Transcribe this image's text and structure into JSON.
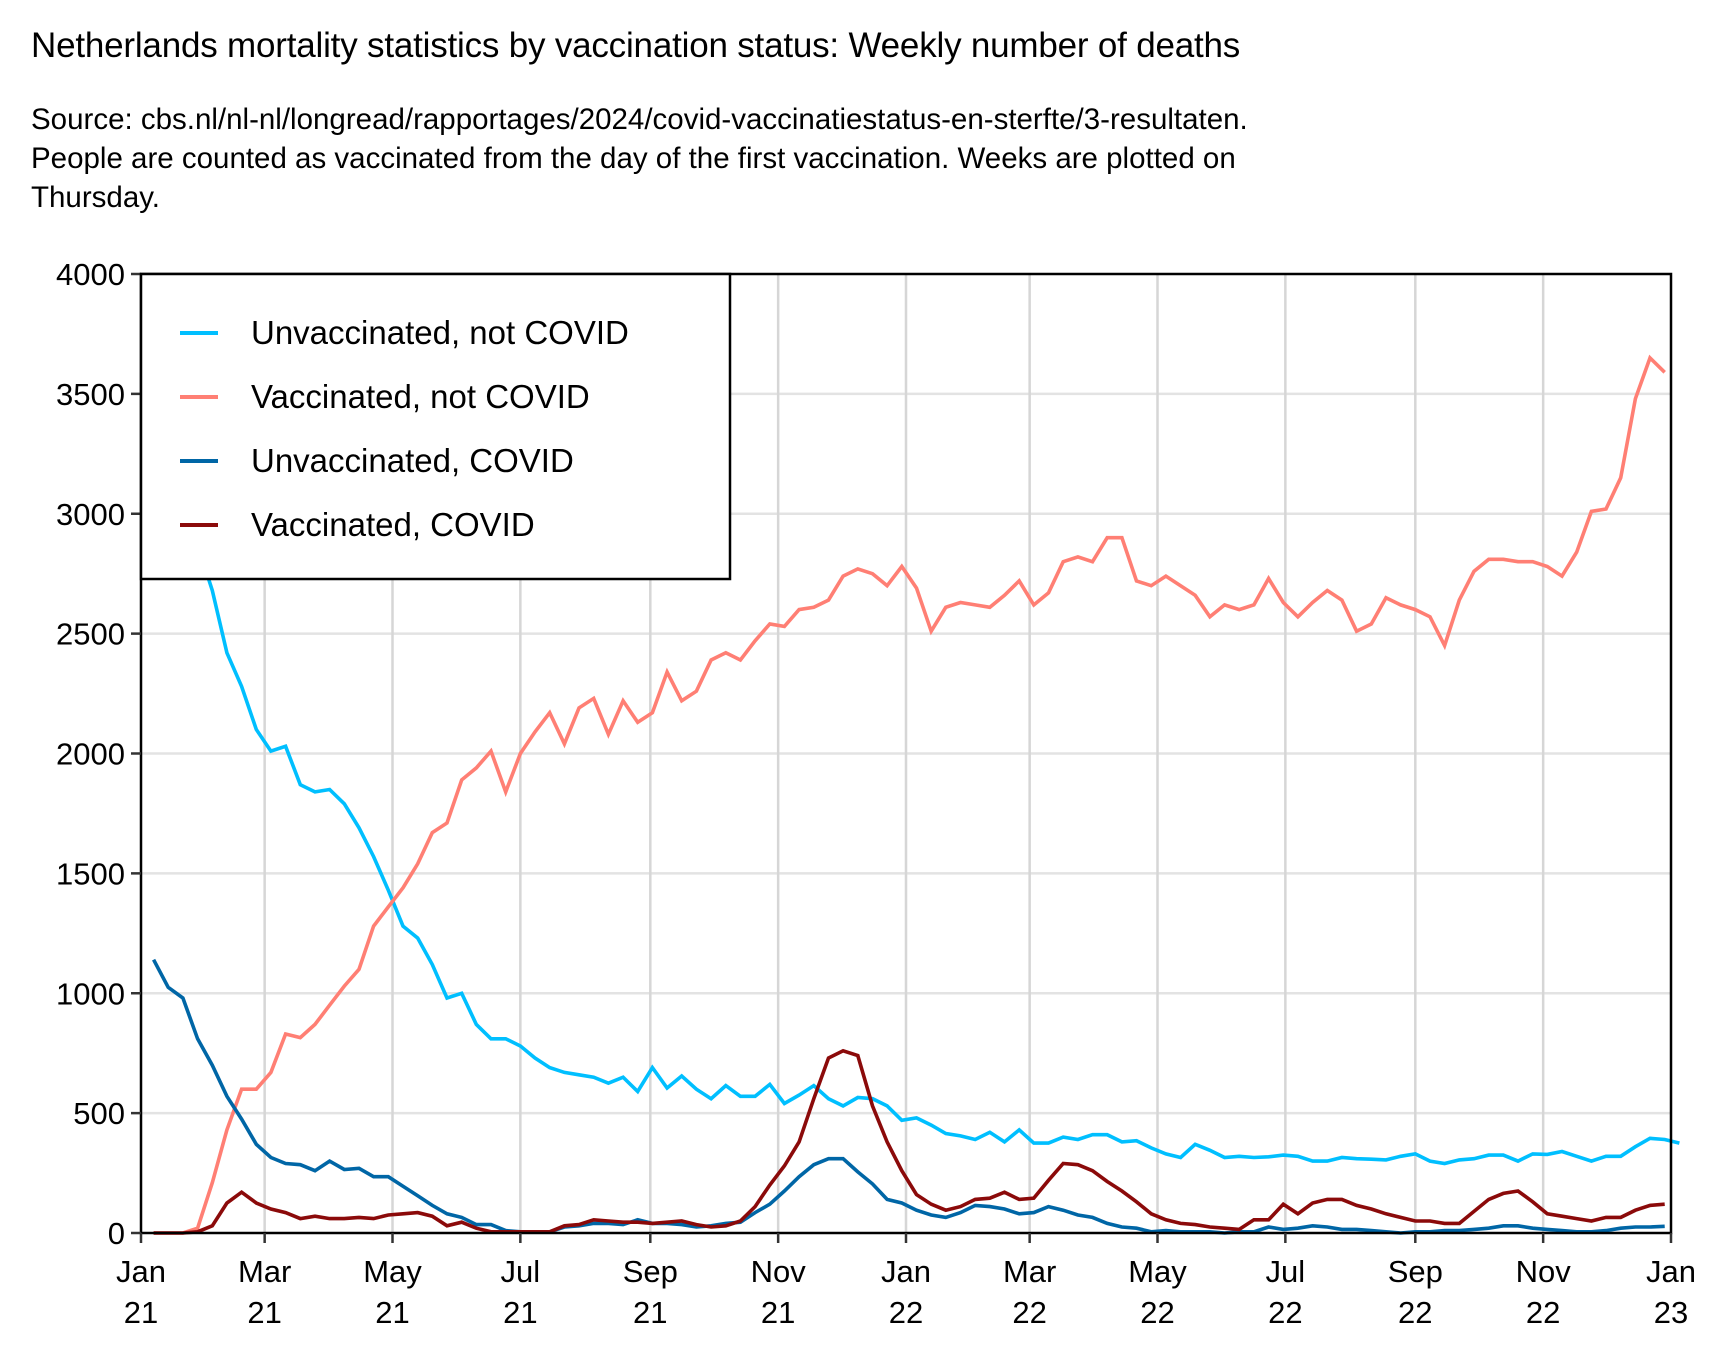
{
  "chart_data": {
    "type": "line",
    "title": "Netherlands mortality statistics by vaccination status: Weekly number of deaths",
    "subtitle_lines": [
      "Source: cbs.nl/nl-nl/longread/rapportages/2024/covid-vaccinatiestatus-en-sterfte/3-resultaten.",
      "People are counted as vaccinated from the day of the first vaccination. Weeks are plotted on",
      "Thursday."
    ],
    "xlabel": "",
    "ylabel": "",
    "ylim": [
      0,
      4000
    ],
    "yticks": [
      0,
      500,
      1000,
      1500,
      2000,
      2500,
      3000,
      3500,
      4000
    ],
    "xlim_days": [
      0,
      730
    ],
    "x_start_date": "2021-01-01",
    "xticks": [
      {
        "day": 0,
        "line1": "Jan",
        "line2": "21"
      },
      {
        "day": 59,
        "line1": "Mar",
        "line2": "21"
      },
      {
        "day": 120,
        "line1": "May",
        "line2": "21"
      },
      {
        "day": 181,
        "line1": "Jul",
        "line2": "21"
      },
      {
        "day": 243,
        "line1": "Sep",
        "line2": "21"
      },
      {
        "day": 304,
        "line1": "Nov",
        "line2": "21"
      },
      {
        "day": 365,
        "line1": "Jan",
        "line2": "22"
      },
      {
        "day": 424,
        "line1": "Mar",
        "line2": "22"
      },
      {
        "day": 485,
        "line1": "May",
        "line2": "22"
      },
      {
        "day": 546,
        "line1": "Jul",
        "line2": "22"
      },
      {
        "day": 608,
        "line1": "Sep",
        "line2": "22"
      },
      {
        "day": 669,
        "line1": "Nov",
        "line2": "22"
      },
      {
        "day": 730,
        "line1": "Jan",
        "line2": "23"
      }
    ],
    "grid": true,
    "legend_position": "top-left",
    "x_first_day": 6,
    "x_step_days": 7,
    "series": [
      {
        "name": "Unvaccinated, not COVID",
        "color": "#00bfff",
        "values": [
          2990,
          2820,
          2880,
          2870,
          2680,
          2420,
          2280,
          2100,
          2010,
          2030,
          1870,
          1840,
          1850,
          1790,
          1690,
          1570,
          1430,
          1280,
          1230,
          1120,
          980,
          1000,
          870,
          810,
          810,
          780,
          730,
          690,
          670,
          660,
          650,
          625,
          650,
          590,
          690,
          605,
          655,
          600,
          560,
          615,
          570,
          570,
          620,
          540,
          575,
          615,
          560,
          530,
          565,
          560,
          530,
          470,
          480,
          450,
          415,
          405,
          390,
          420,
          380,
          430,
          375,
          375,
          400,
          390,
          410,
          410,
          380,
          385,
          355,
          330,
          315,
          370,
          345,
          315,
          320,
          315,
          318,
          325,
          320,
          300,
          300,
          315,
          310,
          308,
          305,
          320,
          330,
          300,
          290,
          305,
          310,
          325,
          325,
          300,
          330,
          328,
          340,
          320,
          300,
          320,
          320,
          360,
          395,
          390,
          375
        ]
      },
      {
        "name": "Vaccinated, not COVID",
        "color": "#ff7f74",
        "values": [
          0,
          0,
          0,
          20,
          210,
          430,
          600,
          600,
          670,
          830,
          815,
          870,
          950,
          1030,
          1100,
          1280,
          1360,
          1440,
          1540,
          1670,
          1710,
          1890,
          1940,
          2010,
          1840,
          2000,
          2090,
          2170,
          2040,
          2190,
          2230,
          2080,
          2220,
          2130,
          2170,
          2340,
          2220,
          2260,
          2390,
          2420,
          2390,
          2470,
          2540,
          2530,
          2600,
          2610,
          2640,
          2740,
          2770,
          2750,
          2700,
          2780,
          2690,
          2510,
          2610,
          2630,
          2620,
          2610,
          2660,
          2720,
          2620,
          2670,
          2800,
          2820,
          2800,
          2900,
          2900,
          2720,
          2700,
          2740,
          2700,
          2660,
          2570,
          2620,
          2600,
          2620,
          2730,
          2630,
          2570,
          2630,
          2680,
          2640,
          2510,
          2540,
          2650,
          2620,
          2600,
          2570,
          2450,
          2640,
          2760,
          2810,
          2810,
          2800,
          2800,
          2780,
          2740,
          2840,
          3010,
          3020,
          3150,
          3480,
          3650,
          3590
        ]
      },
      {
        "name": "Unvaccinated, COVID",
        "color": "#0066a6",
        "values": [
          1140,
          1025,
          980,
          810,
          700,
          570,
          475,
          370,
          315,
          290,
          285,
          260,
          300,
          265,
          270,
          235,
          235,
          195,
          155,
          115,
          80,
          65,
          35,
          35,
          10,
          5,
          5,
          5,
          25,
          30,
          40,
          40,
          35,
          55,
          40,
          40,
          35,
          25,
          30,
          40,
          45,
          85,
          120,
          175,
          235,
          285,
          310,
          310,
          255,
          205,
          140,
          125,
          95,
          75,
          65,
          85,
          115,
          110,
          100,
          80,
          85,
          110,
          95,
          75,
          65,
          40,
          25,
          20,
          5,
          10,
          5,
          5,
          5,
          0,
          5,
          5,
          25,
          15,
          20,
          30,
          25,
          15,
          15,
          10,
          5,
          0,
          5,
          5,
          10,
          10,
          15,
          20,
          30,
          30,
          20,
          15,
          10,
          5,
          5,
          10,
          20,
          25,
          25,
          28
        ]
      },
      {
        "name": "Vaccinated, COVID",
        "color": "#8b0a0a",
        "values": [
          0,
          0,
          0,
          5,
          30,
          125,
          170,
          125,
          100,
          85,
          60,
          70,
          60,
          60,
          65,
          60,
          75,
          80,
          85,
          70,
          30,
          45,
          20,
          5,
          5,
          5,
          5,
          5,
          30,
          35,
          55,
          50,
          45,
          45,
          40,
          45,
          50,
          35,
          25,
          30,
          50,
          110,
          200,
          280,
          380,
          560,
          730,
          760,
          740,
          530,
          380,
          260,
          160,
          120,
          95,
          110,
          140,
          145,
          170,
          140,
          145,
          220,
          290,
          285,
          260,
          215,
          175,
          130,
          80,
          55,
          40,
          35,
          25,
          20,
          15,
          55,
          55,
          120,
          80,
          125,
          140,
          140,
          115,
          100,
          80,
          65,
          50,
          50,
          40,
          40,
          90,
          140,
          165,
          175,
          130,
          80,
          70,
          60,
          50,
          65,
          65,
          95,
          115,
          120
        ]
      }
    ]
  }
}
